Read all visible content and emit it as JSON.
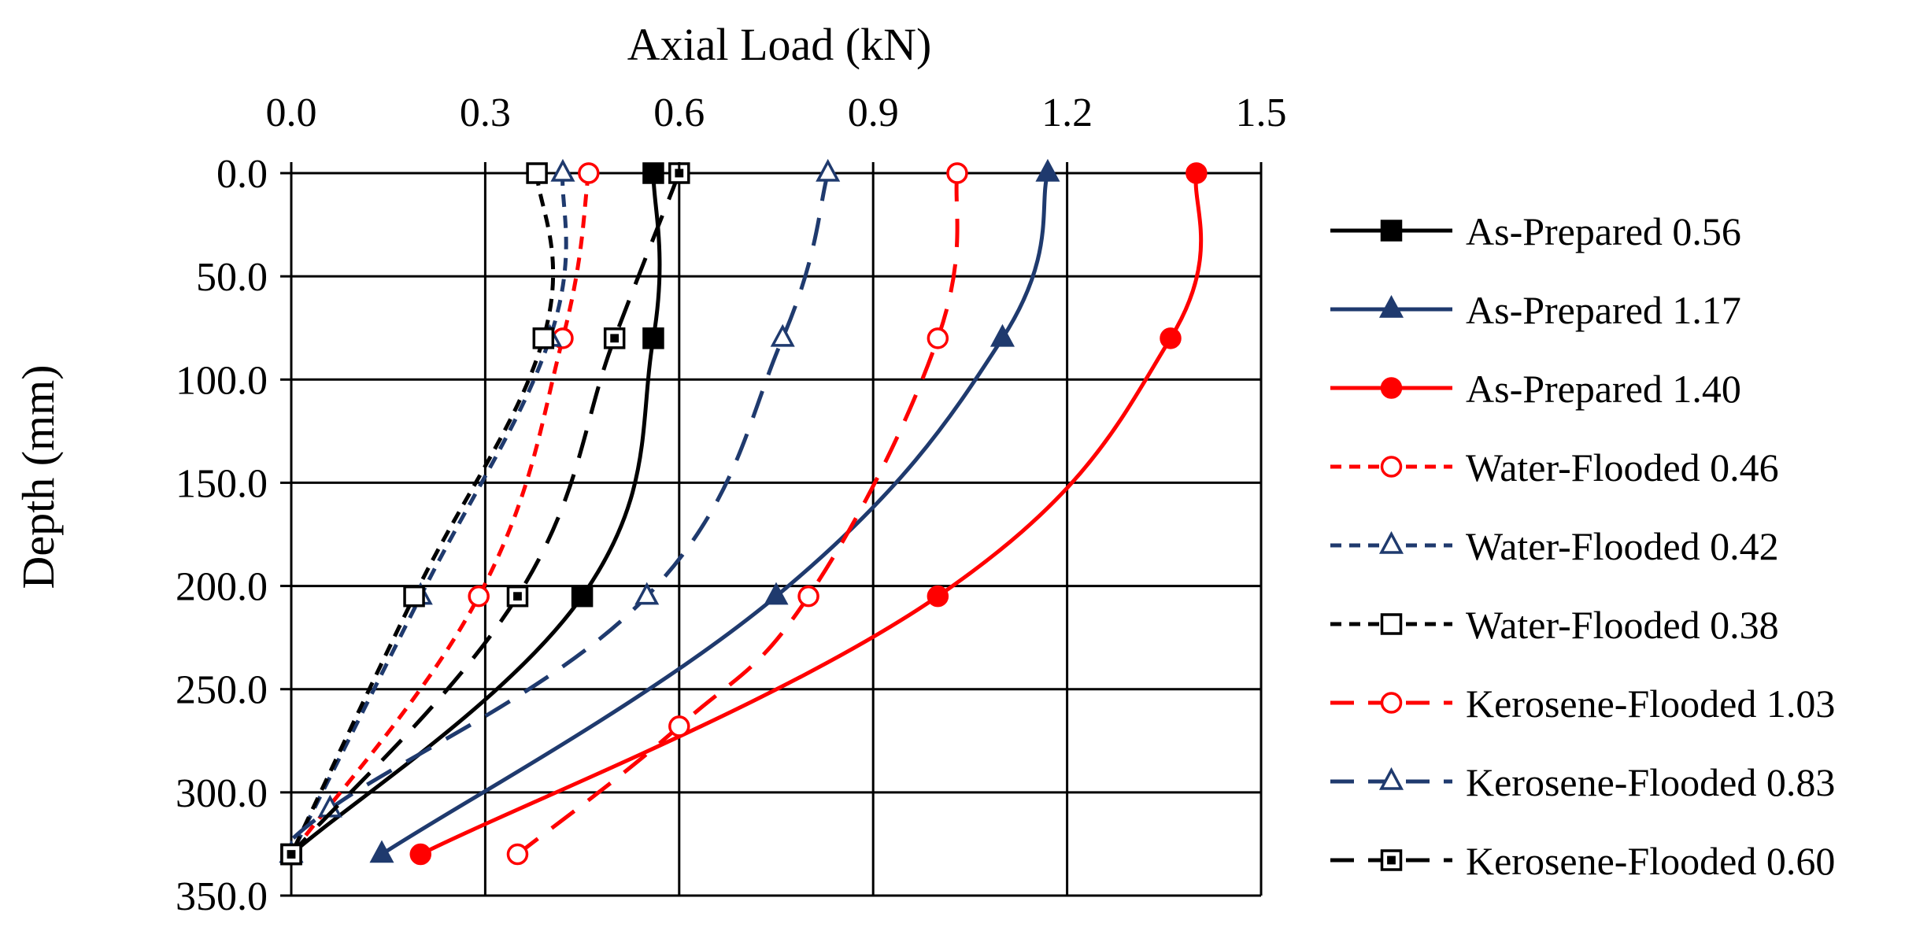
{
  "chart_data": {
    "type": "line",
    "title": "",
    "xlabel": "Axial Load (kN)",
    "ylabel": "Depth (mm)",
    "xlim": [
      0,
      1.5
    ],
    "ylim": [
      350,
      0
    ],
    "x_axis_position": "top",
    "y_axis_reversed": true,
    "x_ticks": [
      "0.0",
      "0.3",
      "0.6",
      "0.9",
      "1.2",
      "1.5"
    ],
    "y_ticks": [
      "0.0",
      "50.0",
      "100.0",
      "150.0",
      "200.0",
      "250.0",
      "300.0",
      "350.0"
    ],
    "grid": true,
    "legend_position": "right",
    "series": [
      {
        "name": "As-Prepared 0.56",
        "color": "#000000",
        "line": "solid",
        "marker": "square",
        "filled": true,
        "points": [
          {
            "x": 0.56,
            "y": 0
          },
          {
            "x": 0.56,
            "y": 80
          },
          {
            "x": 0.45,
            "y": 205
          },
          {
            "x": 0.0,
            "y": 330
          }
        ]
      },
      {
        "name": "As-Prepared 1.17",
        "color": "#1f3a6e",
        "line": "solid",
        "marker": "triangle",
        "filled": true,
        "points": [
          {
            "x": 1.17,
            "y": 0
          },
          {
            "x": 1.1,
            "y": 80
          },
          {
            "x": 0.75,
            "y": 205
          },
          {
            "x": 0.14,
            "y": 330
          }
        ]
      },
      {
        "name": "As-Prepared 1.40",
        "color": "#ff0000",
        "line": "solid",
        "marker": "circle",
        "filled": true,
        "points": [
          {
            "x": 1.4,
            "y": 0
          },
          {
            "x": 1.36,
            "y": 80
          },
          {
            "x": 1.0,
            "y": 205
          },
          {
            "x": 0.2,
            "y": 330
          }
        ]
      },
      {
        "name": "Water-Flooded 0.46",
        "color": "#ff0000",
        "line": "short-dash",
        "marker": "circle",
        "filled": false,
        "points": [
          {
            "x": 0.46,
            "y": 0
          },
          {
            "x": 0.42,
            "y": 80
          },
          {
            "x": 0.29,
            "y": 205
          },
          {
            "x": 0.0,
            "y": 330
          }
        ]
      },
      {
        "name": "Water-Flooded 0.42",
        "color": "#1f3a6e",
        "line": "short-dash",
        "marker": "triangle",
        "filled": false,
        "points": [
          {
            "x": 0.42,
            "y": 0
          },
          {
            "x": 0.4,
            "y": 80
          },
          {
            "x": 0.2,
            "y": 205
          },
          {
            "x": 0.0,
            "y": 330
          }
        ]
      },
      {
        "name": "Water-Flooded 0.38",
        "color": "#000000",
        "line": "short-dash",
        "marker": "square",
        "filled": false,
        "points": [
          {
            "x": 0.38,
            "y": 0
          },
          {
            "x": 0.39,
            "y": 80
          },
          {
            "x": 0.19,
            "y": 205
          },
          {
            "x": 0.0,
            "y": 330
          }
        ]
      },
      {
        "name": "Kerosene-Flooded 1.03",
        "color": "#ff0000",
        "line": "long-dash",
        "marker": "circle",
        "filled": false,
        "points": [
          {
            "x": 1.03,
            "y": 0
          },
          {
            "x": 1.0,
            "y": 80
          },
          {
            "x": 0.8,
            "y": 205
          },
          {
            "x": 0.6,
            "y": 268
          },
          {
            "x": 0.35,
            "y": 330
          }
        ]
      },
      {
        "name": "Kerosene-Flooded 0.83",
        "color": "#1f3a6e",
        "line": "long-dash",
        "marker": "triangle",
        "filled": false,
        "points": [
          {
            "x": 0.83,
            "y": 0
          },
          {
            "x": 0.76,
            "y": 80
          },
          {
            "x": 0.55,
            "y": 205
          },
          {
            "x": 0.06,
            "y": 308
          },
          {
            "x": 0.0,
            "y": 330
          }
        ]
      },
      {
        "name": "Kerosene-Flooded 0.60",
        "color": "#000000",
        "line": "long-dash",
        "marker": "square",
        "filled": "dot",
        "points": [
          {
            "x": 0.6,
            "y": 0
          },
          {
            "x": 0.5,
            "y": 80
          },
          {
            "x": 0.35,
            "y": 205
          },
          {
            "x": 0.0,
            "y": 330
          }
        ]
      }
    ]
  }
}
